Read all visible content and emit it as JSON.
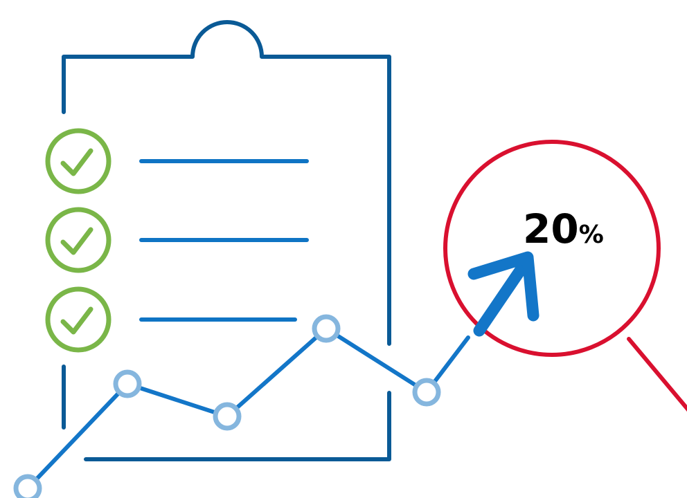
{
  "badge": {
    "number": "20",
    "unit": "%"
  },
  "checklist": {
    "items_checked": 3
  },
  "icons": {
    "clipboard": "clipboard-icon",
    "check": "check-circle-icon",
    "trend": "line-chart-icon",
    "arrow": "up-right-arrow-icon",
    "magnifier": "magnifier-icon"
  },
  "colors": {
    "clipboard": "#0a5a96",
    "lines": "#0f74c4",
    "check": "#7ab648",
    "trend_line": "#1376c8",
    "trend_point": "#85b6de",
    "magnifier": "#d9102f",
    "text": "#000000"
  }
}
